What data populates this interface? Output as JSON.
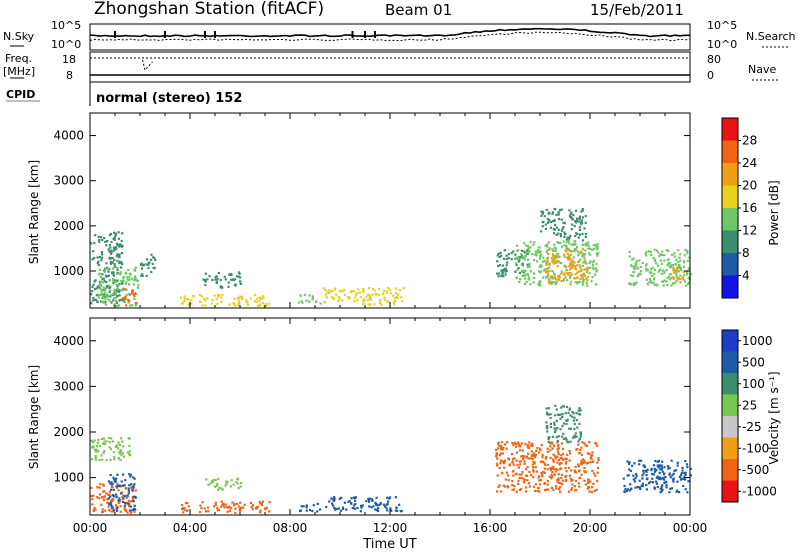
{
  "header": {
    "station": "Zhongshan Station (fitACF)",
    "beam": "Beam 01",
    "date": "15/Feb/2011"
  },
  "strip": {
    "nsky_label": "N.Sky",
    "nsky_ticks": [
      "10^5",
      "10^0"
    ],
    "nsearch_label": "N.Search",
    "nsearch_ticks": [
      "10^5",
      "10^0"
    ],
    "freq_label_1": "Freq.",
    "freq_label_2": "[MHz]",
    "freq_ticks": [
      "18",
      "8"
    ],
    "nave_label": "Nave",
    "nave_ticks": [
      "80",
      "0"
    ],
    "cpid_label": "CPID",
    "cpid_value": "normal (stereo) 152"
  },
  "colors": {
    "power_scale": [
      "#1414e6",
      "#1e5aa8",
      "#3c8c6e",
      "#6ec864",
      "#e6d21e",
      "#f0a014",
      "#f06414",
      "#e61414"
    ],
    "velocity_scale": [
      "#e61414",
      "#f06414",
      "#f0a014",
      "#c8c8c8",
      "#78c850",
      "#3c8c6e",
      "#1e5aa8",
      "#1e3cc8"
    ]
  },
  "chart_data": [
    {
      "type": "heatmap",
      "name": "power-panel",
      "xlabel": "",
      "ylabel": "Slant Range [km]",
      "xlim": [
        0,
        24
      ],
      "ylim": [
        180,
        4500
      ],
      "yticks": [
        "1000",
        "2000",
        "3000",
        "4000"
      ],
      "colorbar_label": "Power [dB]",
      "colorbar_ticks": [
        "4",
        "8",
        "12",
        "16",
        "20",
        "24",
        "28"
      ],
      "colorbar_range": [
        0,
        30
      ],
      "patches": [
        {
          "t0": 0.0,
          "t1": 1.3,
          "r0": 300,
          "r1": 1900,
          "level": 9
        },
        {
          "t0": 0.3,
          "t1": 1.9,
          "r0": 250,
          "r1": 1100,
          "level": 14
        },
        {
          "t0": 1.3,
          "t1": 1.8,
          "r0": 250,
          "r1": 650,
          "level": 25
        },
        {
          "t0": 2.0,
          "t1": 2.6,
          "r0": 900,
          "r1": 1400,
          "level": 8
        },
        {
          "t0": 3.6,
          "t1": 7.2,
          "r0": 250,
          "r1": 500,
          "level": 18
        },
        {
          "t0": 4.5,
          "t1": 6.0,
          "r0": 650,
          "r1": 1000,
          "level": 10
        },
        {
          "t0": 9.3,
          "t1": 12.5,
          "r0": 280,
          "r1": 650,
          "level": 17
        },
        {
          "t0": 8.3,
          "t1": 9.2,
          "r0": 280,
          "r1": 500,
          "level": 12
        },
        {
          "t0": 16.2,
          "t1": 17.5,
          "r0": 900,
          "r1": 1500,
          "level": 9
        },
        {
          "t0": 17.0,
          "t1": 20.3,
          "r0": 700,
          "r1": 1700,
          "level": 14
        },
        {
          "t0": 18.2,
          "t1": 19.9,
          "r0": 750,
          "r1": 1500,
          "level": 22
        },
        {
          "t0": 18.0,
          "t1": 19.8,
          "r0": 1700,
          "r1": 2400,
          "level": 9
        },
        {
          "t0": 21.5,
          "t1": 24.0,
          "r0": 700,
          "r1": 1500,
          "level": 12
        },
        {
          "t0": 23.2,
          "t1": 23.8,
          "r0": 800,
          "r1": 1100,
          "level": 21
        }
      ]
    },
    {
      "type": "heatmap",
      "name": "velocity-panel",
      "xlabel": "Time UT",
      "ylabel": "Slant Range [km]",
      "xlim": [
        0,
        24
      ],
      "ylim": [
        180,
        4500
      ],
      "xticks": [
        "00:00",
        "04:00",
        "08:00",
        "12:00",
        "16:00",
        "20:00",
        "00:00"
      ],
      "yticks": [
        "1000",
        "2000",
        "3000",
        "4000"
      ],
      "colorbar_label": "Velocity [m s⁻¹]",
      "colorbar_ticks": [
        "1000",
        "500",
        "100",
        "25",
        "-25",
        "-100",
        "-500",
        "-1000"
      ],
      "patches": [
        {
          "t0": 0.0,
          "t1": 1.6,
          "r0": 1400,
          "r1": 1900,
          "level": "25"
        },
        {
          "t0": 0.0,
          "t1": 1.8,
          "r0": 250,
          "r1": 900,
          "level": "-500"
        },
        {
          "t0": 0.7,
          "t1": 1.8,
          "r0": 300,
          "r1": 1100,
          "level": "500"
        },
        {
          "t0": 3.6,
          "t1": 7.2,
          "r0": 250,
          "r1": 500,
          "level": "-500"
        },
        {
          "t0": 4.6,
          "t1": 6.0,
          "r0": 750,
          "r1": 1000,
          "level": "25"
        },
        {
          "t0": 8.3,
          "t1": 9.2,
          "r0": 280,
          "r1": 450,
          "level": "500"
        },
        {
          "t0": 9.4,
          "t1": 12.5,
          "r0": 280,
          "r1": 600,
          "level": "500"
        },
        {
          "t0": 16.2,
          "t1": 20.3,
          "r0": 700,
          "r1": 1800,
          "level": "-500"
        },
        {
          "t0": 18.2,
          "t1": 19.6,
          "r0": 1800,
          "r1": 2600,
          "level": "100"
        },
        {
          "t0": 21.3,
          "t1": 24.0,
          "r0": 700,
          "r1": 1400,
          "level": "500"
        }
      ]
    }
  ]
}
